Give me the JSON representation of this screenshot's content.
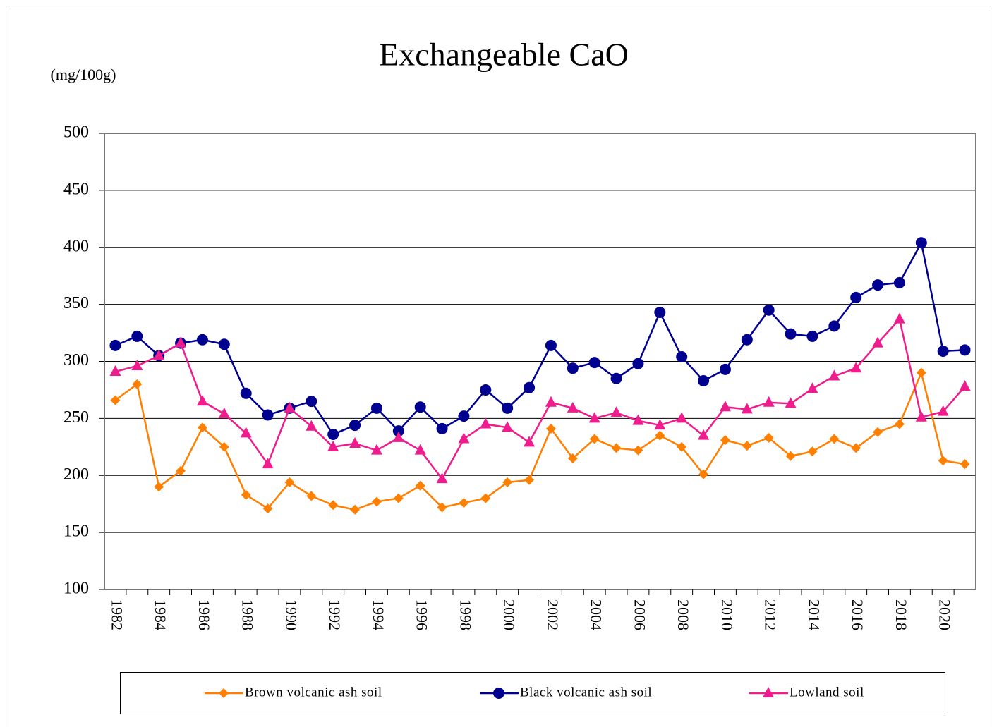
{
  "chart_data": {
    "type": "line",
    "title": "Exchangeable CaO",
    "y_label": "(mg/100g)",
    "categories": [
      "1982",
      null,
      "1984",
      null,
      "1986",
      null,
      "1988",
      null,
      "1990",
      null,
      "1992",
      null,
      "1994",
      null,
      "1996",
      null,
      "1998",
      null,
      "2000",
      null,
      "2002",
      null,
      "2004",
      null,
      "2006",
      null,
      "2008",
      null,
      "2010",
      null,
      "2012",
      null,
      "2014",
      null,
      "2016",
      null,
      "2018",
      null,
      "2020",
      null
    ],
    "series": [
      {
        "name": "Brown volcanic ash soil",
        "color": "#ff7f00",
        "marker": "diamond",
        "values": [
          266,
          280,
          190,
          204,
          242,
          225,
          183,
          171,
          194,
          182,
          174,
          170,
          177,
          180,
          191,
          172,
          176,
          180,
          194,
          196,
          241,
          215,
          232,
          224,
          222,
          235,
          225,
          201,
          231,
          226,
          233,
          217,
          221,
          232,
          224,
          238,
          245,
          290,
          213,
          210
        ]
      },
      {
        "name": "Black volcanic ash soil",
        "color": "#000090",
        "marker": "circle",
        "values": [
          314,
          322,
          305,
          316,
          319,
          315,
          272,
          253,
          259,
          265,
          236,
          244,
          259,
          239,
          260,
          241,
          252,
          275,
          259,
          277,
          314,
          294,
          299,
          285,
          298,
          343,
          304,
          283,
          293,
          319,
          345,
          324,
          322,
          331,
          356,
          367,
          369,
          404,
          309,
          310
        ]
      },
      {
        "name": "Lowland soil",
        "color": "#ee1c8c",
        "marker": "triangle",
        "values": [
          291,
          296,
          305,
          316,
          265,
          254,
          237,
          210,
          259,
          243,
          225,
          228,
          222,
          233,
          222,
          197,
          232,
          245,
          242,
          229,
          264,
          259,
          250,
          255,
          248,
          244,
          250,
          235,
          260,
          258,
          264,
          263,
          276,
          287,
          294,
          316,
          337,
          251,
          256,
          278
        ]
      }
    ],
    "ylim": [
      100,
      500
    ],
    "yticks": [
      100,
      150,
      200,
      250,
      300,
      350,
      400,
      450,
      500
    ],
    "grid": true
  }
}
